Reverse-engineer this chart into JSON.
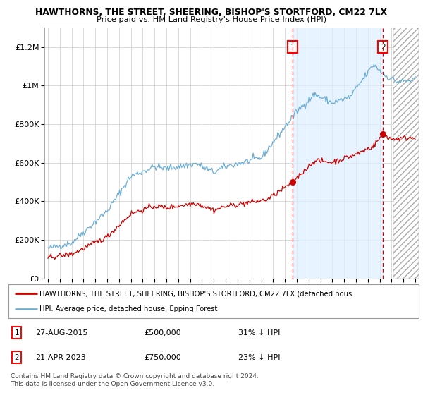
{
  "title": "HAWTHORNS, THE STREET, SHEERING, BISHOP'S STORTFORD, CM22 7LX",
  "subtitle": "Price paid vs. HM Land Registry's House Price Index (HPI)",
  "ylabel_ticks": [
    "£0",
    "£200K",
    "£400K",
    "£600K",
    "£800K",
    "£1M",
    "£1.2M"
  ],
  "ytick_values": [
    0,
    200000,
    400000,
    600000,
    800000,
    1000000,
    1200000
  ],
  "ylim": [
    0,
    1300000
  ],
  "xlim_start": 1994.7,
  "xlim_end": 2026.3,
  "hpi_color": "#6baed6",
  "price_color": "#cc0000",
  "shade_color": "#ddeeff",
  "marker1_date": 2015.65,
  "marker1_price": 500000,
  "marker2_date": 2023.29,
  "marker2_price": 750000,
  "marker1_label": "27-AUG-2015",
  "marker1_value": "£500,000",
  "marker1_hpi": "31% ↓ HPI",
  "marker2_label": "21-APR-2023",
  "marker2_value": "£750,000",
  "marker2_hpi": "23% ↓ HPI",
  "legend_line1": "HAWTHORNS, THE STREET, SHEERING, BISHOP'S STORTFORD, CM22 7LX (detached hous",
  "legend_line2": "HPI: Average price, detached house, Epping Forest",
  "footer": "Contains HM Land Registry data © Crown copyright and database right 2024.\nThis data is licensed under the Open Government Licence v3.0.",
  "hatch_start": 2024.17,
  "background_color": "#ffffff",
  "grid_color": "#cccccc"
}
